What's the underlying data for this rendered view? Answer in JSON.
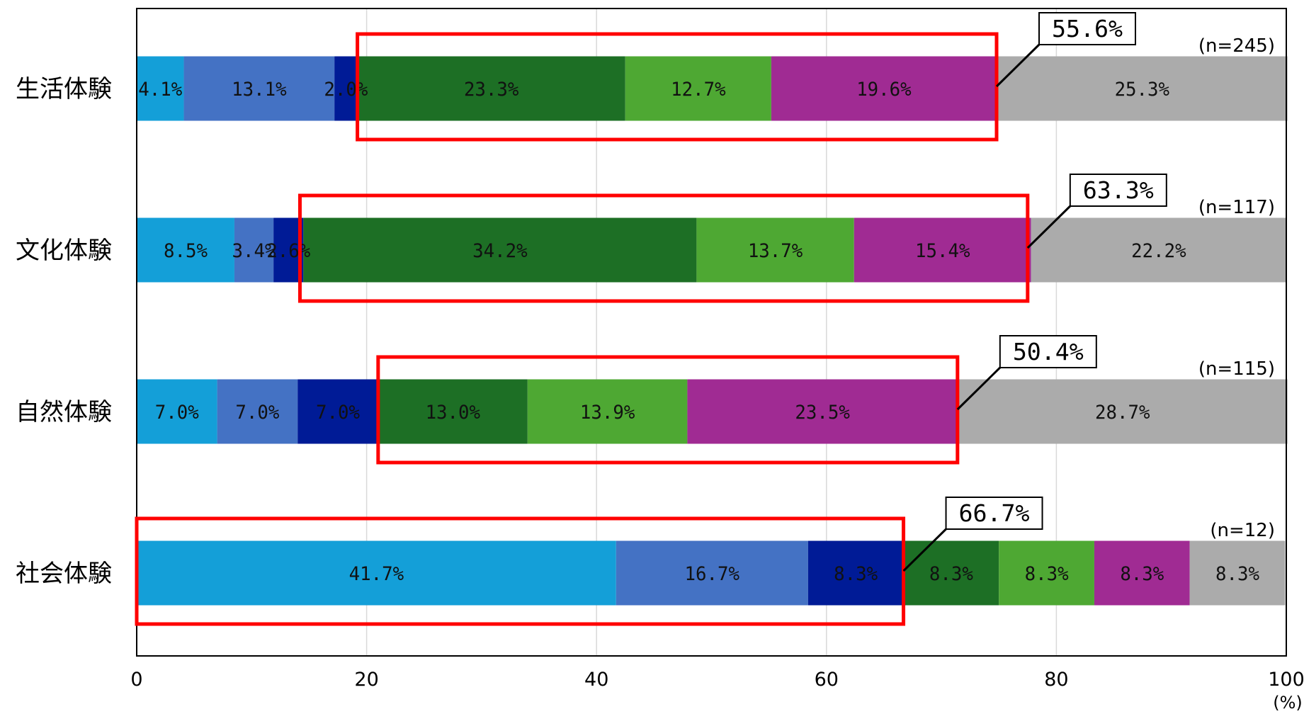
{
  "chart_data": {
    "type": "bar",
    "orientation": "horizontal",
    "stacked": true,
    "xlim": [
      0,
      100
    ],
    "x_ticks": [
      "0",
      "20",
      "40",
      "60",
      "80",
      "100"
    ],
    "x_unit": "(%)",
    "grid": "vertical",
    "categories": [
      "生活体験",
      "文化体験",
      "自然体験",
      "社会体験"
    ],
    "n_labels": [
      "(n=245)",
      "(n=117)",
      "(n=115)",
      "(n=12)"
    ],
    "series_colors": [
      "#149fd8",
      "#4472c4",
      "#001b96",
      "#1d6f25",
      "#4ea833",
      "#a02b93",
      "#ababab"
    ],
    "rows": [
      {
        "values": [
          4.1,
          13.1,
          2.0,
          23.3,
          12.7,
          19.6,
          25.3
        ],
        "labels": [
          "4.1%",
          "13.1%",
          "2.0%",
          "23.3%",
          "12.7%",
          "19.6%",
          "25.3%"
        ]
      },
      {
        "values": [
          8.5,
          3.4,
          2.6,
          34.2,
          13.7,
          15.4,
          22.2
        ],
        "labels": [
          "8.5%",
          "3.4%",
          "2.6%",
          "34.2%",
          "13.7%",
          "15.4%",
          "22.2%"
        ]
      },
      {
        "values": [
          7.0,
          7.0,
          7.0,
          13.0,
          13.9,
          23.5,
          28.7
        ],
        "labels": [
          "7.0%",
          "7.0%",
          "7.0%",
          "13.0%",
          "13.9%",
          "23.5%",
          "28.7%"
        ]
      },
      {
        "values": [
          41.7,
          16.7,
          8.3,
          8.3,
          8.3,
          8.3,
          8.3
        ],
        "labels": [
          "41.7%",
          "16.7%",
          "8.3%",
          "8.3%",
          "8.3%",
          "8.3%",
          "8.3%"
        ]
      }
    ],
    "highlights": [
      {
        "row": 0,
        "from": 19.2,
        "to": 74.8,
        "label": "55.6%"
      },
      {
        "row": 1,
        "from": 14.2,
        "to": 77.5,
        "label": "63.3%"
      },
      {
        "row": 2,
        "from": 21.0,
        "to": 71.4,
        "label": "50.4%"
      },
      {
        "row": 3,
        "from": 0.0,
        "to": 66.7,
        "label": "66.7%"
      }
    ]
  }
}
